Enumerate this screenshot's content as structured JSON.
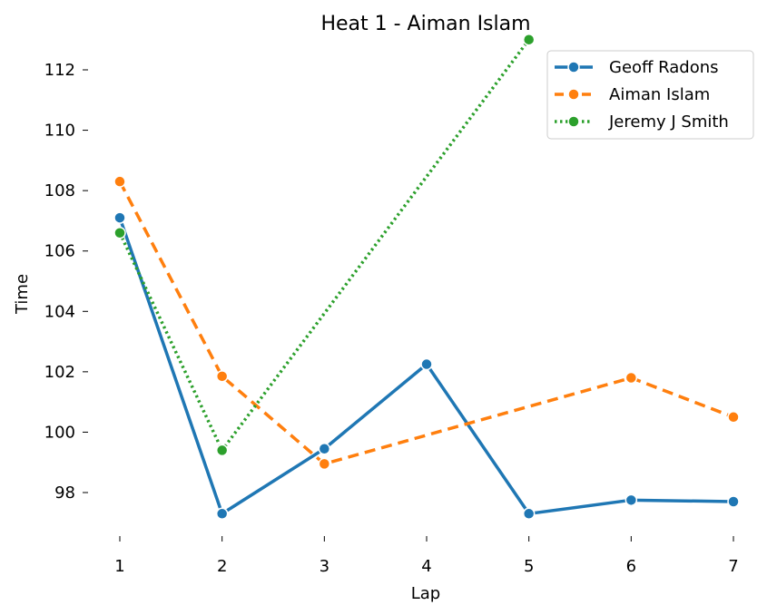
{
  "chart_data": {
    "type": "line",
    "title": "Heat 1 - Aiman Islam",
    "xlabel": "Lap",
    "ylabel": "Time",
    "x": [
      1,
      2,
      3,
      4,
      5,
      6,
      7
    ],
    "xticks": [
      "1",
      "2",
      "3",
      "4",
      "5",
      "6",
      "7"
    ],
    "yticks": [
      "98",
      "100",
      "102",
      "104",
      "106",
      "108",
      "110",
      "112"
    ],
    "ylim": [
      96.4,
      113.2
    ],
    "grid": false,
    "legend_position": "top-right",
    "series": [
      {
        "name": "Geoff Radons",
        "color": "#1f77b4",
        "dash": "solid",
        "points": [
          [
            1,
            107.1
          ],
          [
            2,
            97.3
          ],
          [
            3,
            99.45
          ],
          [
            4,
            102.25
          ],
          [
            5,
            97.3
          ],
          [
            6,
            97.75
          ],
          [
            7,
            97.7
          ]
        ]
      },
      {
        "name": "Aiman Islam",
        "color": "#ff7f0e",
        "dash": "dashed",
        "points": [
          [
            1,
            108.3
          ],
          [
            2,
            101.85
          ],
          [
            3,
            98.95
          ],
          [
            6,
            101.8
          ],
          [
            7,
            100.5
          ]
        ]
      },
      {
        "name": "Jeremy J Smith",
        "color": "#2ca02c",
        "dash": "dotted",
        "points": [
          [
            1,
            106.6
          ],
          [
            2,
            99.4
          ],
          [
            5,
            113.0
          ]
        ]
      }
    ]
  }
}
